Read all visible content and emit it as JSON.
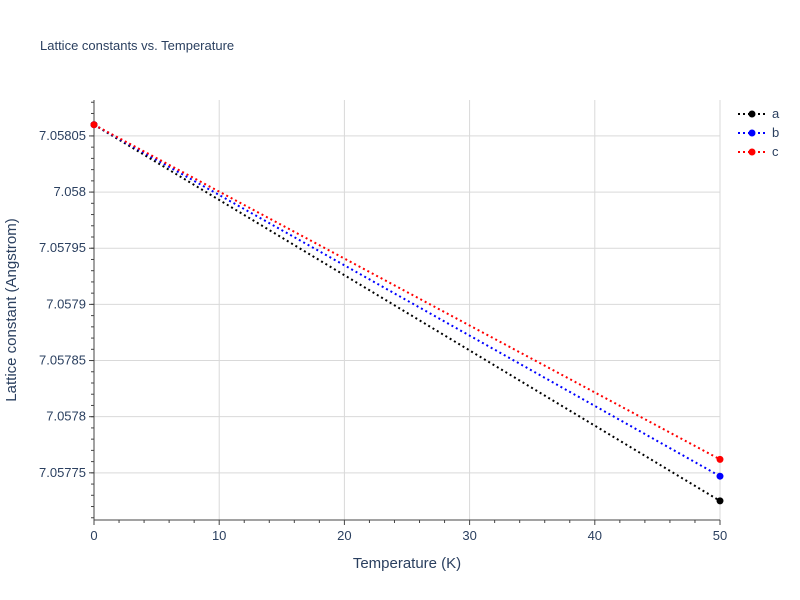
{
  "chart_data": {
    "type": "line",
    "title": "Lattice constants vs. Temperature",
    "xlabel": "Temperature (K)",
    "ylabel": "Lattice constant (Angstrom)",
    "xlim": [
      0,
      50
    ],
    "ylim": [
      7.057708,
      7.058082
    ],
    "x_ticks": [
      0,
      10,
      20,
      30,
      40,
      50
    ],
    "x_tick_labels": [
      "0",
      "10",
      "20",
      "30",
      "40",
      "50"
    ],
    "y_ticks": [
      7.05775,
      7.0578,
      7.05785,
      7.0579,
      7.05795,
      7.058,
      7.05805
    ],
    "y_tick_labels": [
      "7.05775",
      "7.0578",
      "7.05785",
      "7.0579",
      "7.05795",
      "7.058",
      "7.05805"
    ],
    "grid": true,
    "legend_position": "top-right",
    "series": [
      {
        "name": "a",
        "color": "#000000",
        "x": [
          0,
          50
        ],
        "y": [
          7.05806,
          7.057725
        ]
      },
      {
        "name": "b",
        "color": "#0000ff",
        "x": [
          0,
          50
        ],
        "y": [
          7.05806,
          7.057747
        ]
      },
      {
        "name": "c",
        "color": "#ff0000",
        "x": [
          0,
          50
        ],
        "y": [
          7.05806,
          7.057762
        ]
      }
    ]
  }
}
